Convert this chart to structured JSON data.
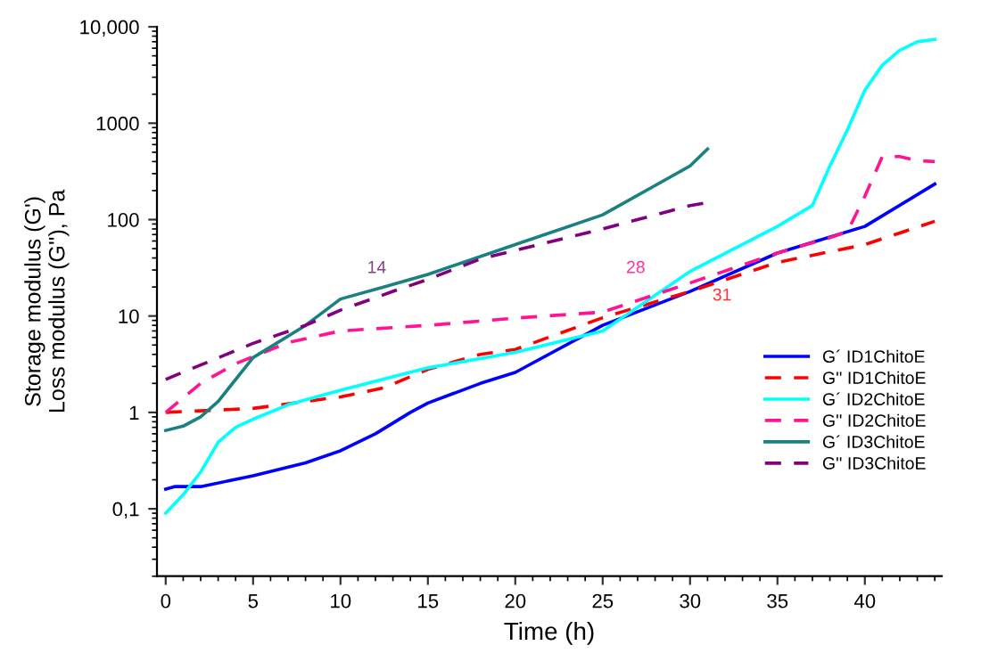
{
  "chart_data": {
    "type": "line",
    "xlabel": "Time (h)",
    "ylabel": "Storage modulus (G')\nLoss modulus (G''), Pa",
    "log": "y",
    "xlim": [
      -0.5,
      44.4
    ],
    "ylim": [
      0.02,
      10000
    ],
    "xticks": [
      0,
      5,
      10,
      15,
      20,
      25,
      30,
      35,
      40
    ],
    "yticks": [
      {
        "value": 0.1,
        "label": "0,1"
      },
      1,
      10,
      100,
      1000,
      {
        "value": 10000,
        "label": "10,000"
      }
    ],
    "grid": false,
    "legend": "right",
    "marker": "none",
    "annotations": [
      "14",
      "28",
      "31"
    ],
    "series": [
      {
        "name": "G´ ID1ChitoE",
        "color": "#0000ff",
        "line_style": "solid",
        "x": [
          0,
          0.5,
          2,
          5,
          8,
          10,
          12,
          14,
          15,
          18,
          20,
          25,
          30,
          35,
          40,
          44
        ],
        "values": [
          0.16,
          0.17,
          0.17,
          0.22,
          0.3,
          0.4,
          0.6,
          1.0,
          1.25,
          2.0,
          2.6,
          8,
          18,
          45,
          85,
          234
        ]
      },
      {
        "name": "G'' ID1ChitoE",
        "color": "#ff0000",
        "line_style": "dashed",
        "x": [
          0,
          5,
          10,
          12.5,
          15,
          18,
          20,
          25,
          30,
          35,
          40,
          44
        ],
        "values": [
          1.0,
          1.1,
          1.45,
          1.8,
          2.8,
          4.0,
          4.5,
          9.6,
          18,
          36,
          55,
          96
        ]
      },
      {
        "name": "G´ ID2ChitoE",
        "color": "#00ffff",
        "line_style": "solid",
        "x": [
          0,
          1,
          2,
          3,
          4,
          5,
          7,
          10,
          15,
          20,
          25,
          30,
          35,
          37,
          38,
          39,
          40,
          41,
          42,
          43,
          44
        ],
        "values": [
          0.09,
          0.14,
          0.24,
          0.49,
          0.7,
          0.85,
          1.2,
          1.7,
          2.9,
          4.2,
          7,
          29,
          85,
          140,
          360,
          850,
          2200,
          4000,
          5700,
          7000,
          7400
        ]
      },
      {
        "name": "G'' ID2ChitoE",
        "color": "#ff1493",
        "line_style": "dashed",
        "x": [
          0,
          2,
          4,
          7,
          10,
          15,
          20,
          25,
          30,
          35,
          38,
          39,
          40,
          41,
          42,
          43,
          44
        ],
        "values": [
          1.0,
          2.0,
          3.2,
          5.3,
          7,
          8,
          9.5,
          11,
          22,
          45,
          65,
          75,
          175,
          450,
          450,
          410,
          400
        ]
      },
      {
        "name": "G´ ID3ChitoE",
        "color": "#1a8080",
        "line_style": "solid",
        "x": [
          0,
          1,
          2,
          3,
          5,
          8,
          10,
          12.5,
          15,
          20,
          25,
          30,
          31
        ],
        "values": [
          0.65,
          0.72,
          0.9,
          1.3,
          3.7,
          8,
          15,
          20,
          27,
          55,
          112,
          360,
          540
        ]
      },
      {
        "name": "G'' ID3ChitoE",
        "color": "#800080",
        "line_style": "dashed",
        "x": [
          0,
          5,
          8,
          10,
          13,
          15,
          18,
          25,
          30,
          31
        ],
        "values": [
          2.2,
          5.2,
          8,
          11.5,
          18,
          24,
          39,
          80,
          140,
          150
        ]
      }
    ]
  }
}
